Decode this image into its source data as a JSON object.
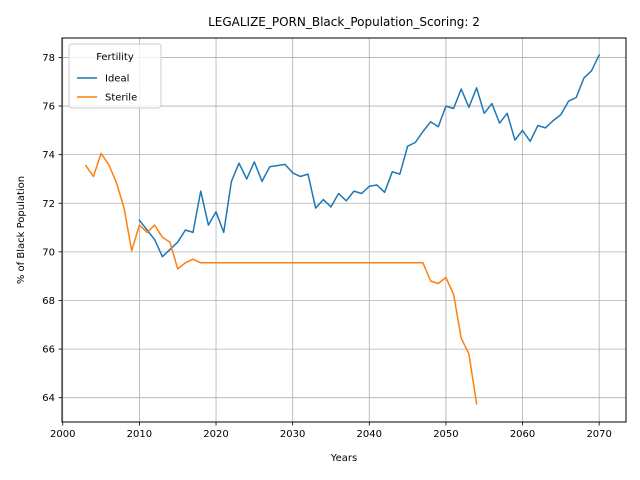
{
  "chart_data": {
    "type": "line",
    "title": "LEGALIZE_PORN_Black_Population_Scoring: 2",
    "xlabel": "Years",
    "ylabel": "% of Black Population",
    "xlim": [
      1999.9,
      2073.5
    ],
    "ylim": [
      63.0,
      78.8
    ],
    "xticks": [
      2000,
      2010,
      2020,
      2030,
      2040,
      2050,
      2060,
      2070
    ],
    "yticks": [
      64,
      66,
      68,
      70,
      72,
      74,
      76,
      78
    ],
    "grid": true,
    "legend": {
      "title": "Fertility",
      "position": "upper-left"
    },
    "series": [
      {
        "name": "Ideal",
        "color": "#1f77b4",
        "x": [
          2010,
          2011,
          2012,
          2013,
          2014,
          2015,
          2016,
          2017,
          2018,
          2019,
          2020,
          2021,
          2022,
          2023,
          2024,
          2025,
          2026,
          2027,
          2028,
          2029,
          2030,
          2031,
          2032,
          2033,
          2034,
          2035,
          2036,
          2037,
          2038,
          2039,
          2040,
          2041,
          2042,
          2043,
          2044,
          2045,
          2046,
          2047,
          2048,
          2049,
          2050,
          2051,
          2052,
          2053,
          2054,
          2055,
          2056,
          2057,
          2058,
          2059,
          2060,
          2061,
          2062,
          2063,
          2064,
          2065,
          2066,
          2067,
          2068,
          2069,
          2070
        ],
        "y": [
          71.3,
          70.9,
          70.5,
          69.8,
          70.1,
          70.4,
          70.9,
          70.8,
          72.5,
          71.1,
          71.65,
          70.8,
          72.9,
          73.65,
          73.0,
          73.7,
          72.9,
          73.5,
          73.55,
          73.6,
          73.25,
          73.1,
          73.2,
          71.8,
          72.15,
          71.85,
          72.4,
          72.1,
          72.5,
          72.4,
          72.7,
          72.75,
          72.45,
          73.3,
          73.2,
          74.35,
          74.5,
          74.95,
          75.35,
          75.15,
          76.0,
          75.9,
          76.7,
          75.95,
          76.75,
          75.7,
          76.1,
          75.3,
          75.7,
          74.6,
          75.0,
          74.55,
          75.2,
          75.1,
          75.4,
          75.65,
          76.2,
          76.35,
          77.15,
          77.45,
          78.1
        ]
      },
      {
        "name": "Sterile",
        "color": "#ff7f0e",
        "x": [
          2003,
          2004,
          2005,
          2006,
          2007,
          2008,
          2009,
          2010,
          2011,
          2012,
          2013,
          2014,
          2015,
          2016,
          2017,
          2018,
          2019,
          2020,
          2021,
          2022,
          2023,
          2024,
          2025,
          2026,
          2027,
          2028,
          2029,
          2030,
          2031,
          2032,
          2033,
          2034,
          2035,
          2036,
          2037,
          2038,
          2039,
          2040,
          2041,
          2042,
          2043,
          2044,
          2045,
          2046,
          2047,
          2048,
          2049,
          2050,
          2051,
          2052,
          2053,
          2054
        ],
        "y": [
          73.55,
          73.1,
          74.05,
          73.6,
          72.85,
          71.8,
          70.05,
          71.1,
          70.8,
          71.1,
          70.6,
          70.4,
          69.3,
          69.55,
          69.7,
          69.55,
          69.55,
          69.55,
          69.55,
          69.55,
          69.55,
          69.55,
          69.55,
          69.55,
          69.55,
          69.55,
          69.55,
          69.55,
          69.55,
          69.55,
          69.55,
          69.55,
          69.55,
          69.55,
          69.55,
          69.55,
          69.55,
          69.55,
          69.55,
          69.55,
          69.55,
          69.55,
          69.55,
          69.55,
          69.55,
          68.8,
          68.7,
          68.95,
          68.25,
          66.45,
          65.8,
          63.75
        ]
      }
    ]
  }
}
